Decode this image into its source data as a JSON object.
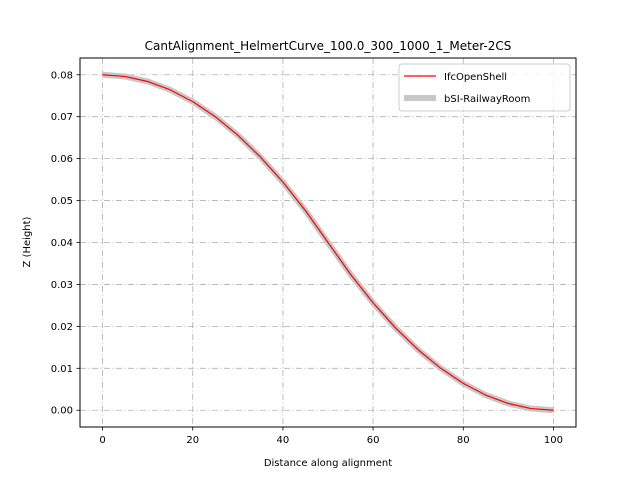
{
  "chart_data": {
    "type": "line",
    "title": "CantAlignment_HelmertCurve_100.0_300_1000_1_Meter-2CS",
    "xlabel": "Distance along alignment",
    "ylabel": "Z (Height)",
    "xlim": [
      -5,
      105
    ],
    "ylim": [
      -0.004,
      0.084
    ],
    "x_ticks": [
      "0",
      "20",
      "40",
      "60",
      "80",
      "100"
    ],
    "y_ticks": [
      "0.00",
      "0.01",
      "0.02",
      "0.03",
      "0.04",
      "0.05",
      "0.06",
      "0.07",
      "0.08"
    ],
    "grid": true,
    "legend_position": "upper right",
    "series": [
      {
        "name": "IfcOpenShell",
        "color": "#ff0000",
        "x": [
          0,
          5,
          10,
          15,
          20,
          25,
          30,
          35,
          40,
          45,
          50,
          55,
          60,
          65,
          70,
          75,
          80,
          85,
          90,
          95,
          100
        ],
        "y": [
          0.08,
          0.0796,
          0.0784,
          0.0764,
          0.0736,
          0.07,
          0.0656,
          0.0604,
          0.0544,
          0.0476,
          0.04,
          0.0324,
          0.0256,
          0.0196,
          0.0144,
          0.01,
          0.0064,
          0.0036,
          0.0016,
          0.0004,
          0.0
        ]
      },
      {
        "name": "bSI-RailwayRoom",
        "color": "#c8c8c8",
        "x": [
          0,
          5,
          10,
          15,
          20,
          25,
          30,
          35,
          40,
          45,
          50,
          55,
          60,
          65,
          70,
          75,
          80,
          85,
          90,
          95,
          100
        ],
        "y": [
          0.08,
          0.0796,
          0.0784,
          0.0764,
          0.0736,
          0.07,
          0.0656,
          0.0604,
          0.0544,
          0.0476,
          0.04,
          0.0324,
          0.0256,
          0.0196,
          0.0144,
          0.01,
          0.0064,
          0.0036,
          0.0016,
          0.0004,
          0.0
        ]
      }
    ]
  }
}
